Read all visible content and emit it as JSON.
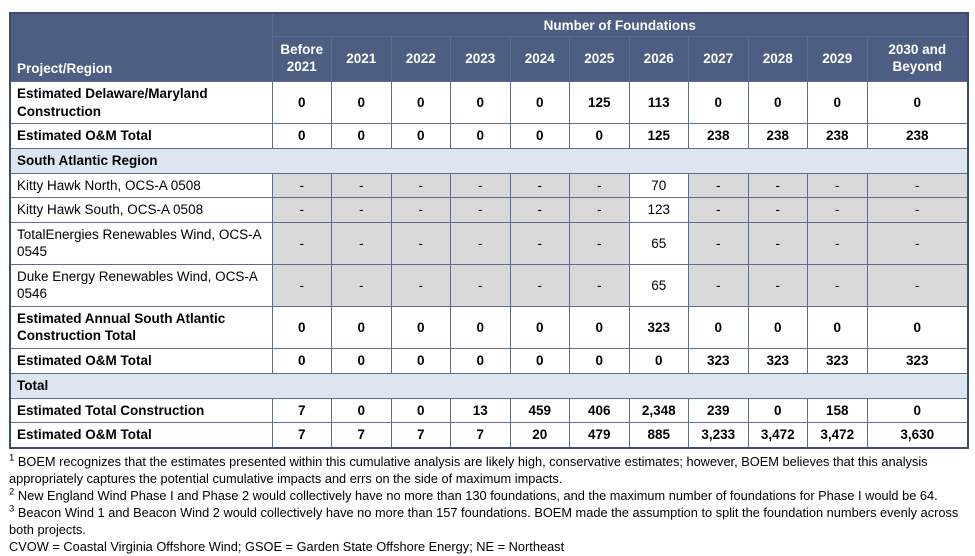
{
  "table": {
    "title": "Number of Foundations",
    "corner_header": "Project/Region",
    "year_columns": [
      "Before 2021",
      "2021",
      "2022",
      "2023",
      "2024",
      "2025",
      "2026",
      "2027",
      "2028",
      "2029",
      "2030 and Beyond"
    ],
    "rows": [
      {
        "type": "data",
        "bold": true,
        "label": "Estimated Delaware/Maryland Construction",
        "values": [
          "0",
          "0",
          "0",
          "0",
          "0",
          "125",
          "113",
          "0",
          "0",
          "0",
          "0"
        ]
      },
      {
        "type": "data",
        "bold": true,
        "label": "Estimated O&M Total",
        "values": [
          "0",
          "0",
          "0",
          "0",
          "0",
          "0",
          "125",
          "238",
          "238",
          "238",
          "238"
        ]
      },
      {
        "type": "section",
        "label": "South Atlantic Region"
      },
      {
        "type": "data",
        "bold": false,
        "label": "Kitty Hawk North, OCS-A 0508",
        "values": [
          "-",
          "-",
          "-",
          "-",
          "-",
          "-",
          "70",
          "-",
          "-",
          "-",
          "-"
        ]
      },
      {
        "type": "data",
        "bold": false,
        "label": "Kitty Hawk South, OCS-A 0508",
        "values": [
          "-",
          "-",
          "-",
          "-",
          "-",
          "-",
          "123",
          "-",
          "-",
          "-",
          "-"
        ]
      },
      {
        "type": "data",
        "bold": false,
        "label": "TotalEnergies Renewables Wind, OCS-A 0545",
        "values": [
          "-",
          "-",
          "-",
          "-",
          "-",
          "-",
          "65",
          "-",
          "-",
          "-",
          "-"
        ]
      },
      {
        "type": "data",
        "bold": false,
        "label": "Duke Energy Renewables Wind, OCS-A 0546",
        "values": [
          "-",
          "-",
          "-",
          "-",
          "-",
          "-",
          "65",
          "-",
          "-",
          "-",
          "-"
        ]
      },
      {
        "type": "data",
        "bold": true,
        "label": "Estimated Annual South Atlantic Construction Total",
        "values": [
          "0",
          "0",
          "0",
          "0",
          "0",
          "0",
          "323",
          "0",
          "0",
          "0",
          "0"
        ]
      },
      {
        "type": "data",
        "bold": true,
        "label": "Estimated O&M Total",
        "values": [
          "0",
          "0",
          "0",
          "0",
          "0",
          "0",
          "0",
          "323",
          "323",
          "323",
          "323"
        ]
      },
      {
        "type": "section",
        "label": "Total"
      },
      {
        "type": "data",
        "bold": true,
        "label": "Estimated Total Construction",
        "values": [
          "7",
          "0",
          "0",
          "13",
          "459",
          "406",
          "2,348",
          "239",
          "0",
          "158",
          "0"
        ]
      },
      {
        "type": "data",
        "bold": true,
        "label": "Estimated O&M Total",
        "values": [
          "7",
          "7",
          "7",
          "7",
          "20",
          "479",
          "885",
          "3,233",
          "3,472",
          "3,472",
          "3,630"
        ]
      }
    ]
  },
  "footnotes": [
    {
      "marker": "1",
      "text": "BOEM recognizes that the estimates presented within this cumulative analysis are likely high, conservative estimates; however, BOEM believes that this analysis appropriately captures the potential cumulative impacts and errs on the side of maximum impacts."
    },
    {
      "marker": "2",
      "text": "New England Wind Phase I and Phase 2 would collectively have no more than 130 foundations, and the maximum number of foundations for Phase I would be 64."
    },
    {
      "marker": "3",
      "text": "Beacon Wind 1 and Beacon Wind 2 would collectively have no more than 157 foundations. BOEM made the assumption to split the foundation numbers evenly across both projects."
    },
    {
      "marker": "",
      "text": "CVOW = Coastal Virginia Offshore Wind; GSOE = Garden State Offshore Energy; NE = Northeast"
    }
  ],
  "colors": {
    "header_bg": "#4c5f82",
    "header_text": "#ffffff",
    "section_bg": "#dce6f1",
    "dash_cell_bg": "#d9d9d9",
    "inner_border": "#5d6c92",
    "outer_border": "#3d4d6f"
  }
}
